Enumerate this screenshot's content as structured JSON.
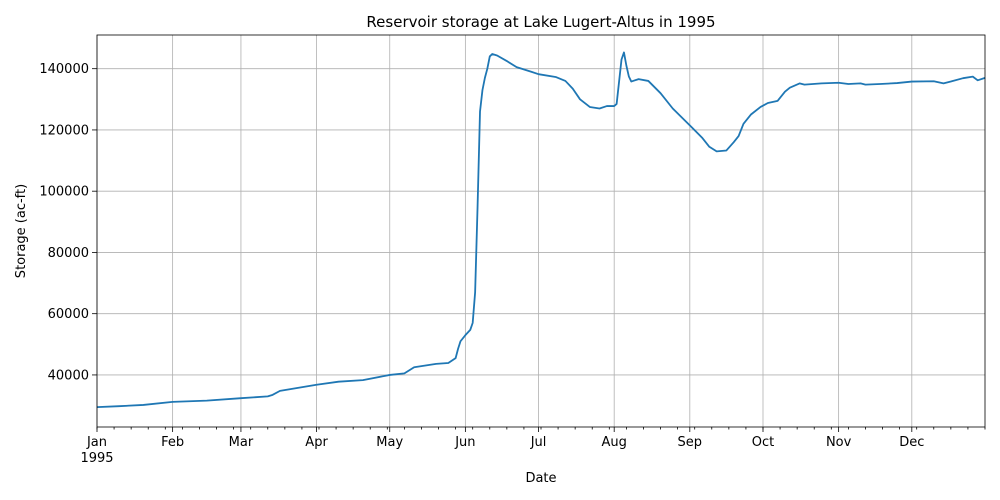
{
  "chart_data": {
    "type": "line",
    "title": "Reservoir storage at Lake Lugert-Altus in 1995",
    "xlabel": "Date",
    "ylabel": "Storage (ac-ft)",
    "xlim": [
      "1995-01-01",
      "1995-12-31"
    ],
    "ylim": [
      23000,
      151000
    ],
    "grid": true,
    "line_color": "#1f77b4",
    "x_ticks": [
      {
        "date": "1995-01-01",
        "label": "Jan",
        "sublabel": "1995"
      },
      {
        "date": "1995-02-01",
        "label": "Feb"
      },
      {
        "date": "1995-03-01",
        "label": "Mar"
      },
      {
        "date": "1995-04-01",
        "label": "Apr"
      },
      {
        "date": "1995-05-01",
        "label": "May"
      },
      {
        "date": "1995-06-01",
        "label": "Jun"
      },
      {
        "date": "1995-07-01",
        "label": "Jul"
      },
      {
        "date": "1995-08-01",
        "label": "Aug"
      },
      {
        "date": "1995-09-01",
        "label": "Sep"
      },
      {
        "date": "1995-10-01",
        "label": "Oct"
      },
      {
        "date": "1995-11-01",
        "label": "Nov"
      },
      {
        "date": "1995-12-01",
        "label": "Dec"
      }
    ],
    "y_ticks": [
      40000,
      60000,
      80000,
      100000,
      120000,
      140000
    ],
    "series": [
      {
        "points": [
          [
            "1995-01-01",
            29500
          ],
          [
            "1995-01-10",
            29800
          ],
          [
            "1995-01-20",
            30200
          ],
          [
            "1995-02-01",
            31200
          ],
          [
            "1995-02-15",
            31600
          ],
          [
            "1995-03-01",
            32400
          ],
          [
            "1995-03-12",
            33000
          ],
          [
            "1995-03-14",
            33500
          ],
          [
            "1995-03-17",
            34800
          ],
          [
            "1995-04-01",
            36800
          ],
          [
            "1995-04-10",
            37800
          ],
          [
            "1995-04-20",
            38300
          ],
          [
            "1995-05-01",
            40000
          ],
          [
            "1995-05-07",
            40500
          ],
          [
            "1995-05-11",
            42500
          ],
          [
            "1995-05-20",
            43600
          ],
          [
            "1995-05-25",
            43900
          ],
          [
            "1995-05-28",
            45500
          ],
          [
            "1995-05-29",
            48500
          ],
          [
            "1995-05-30",
            51000
          ],
          [
            "1995-06-01",
            53000
          ],
          [
            "1995-06-03",
            54700
          ],
          [
            "1995-06-04",
            57000
          ],
          [
            "1995-06-05",
            67000
          ],
          [
            "1995-06-06",
            95000
          ],
          [
            "1995-06-07",
            126000
          ],
          [
            "1995-06-08",
            133000
          ],
          [
            "1995-06-09",
            137000
          ],
          [
            "1995-06-10",
            140000
          ],
          [
            "1995-06-11",
            144000
          ],
          [
            "1995-06-12",
            144800
          ],
          [
            "1995-06-14",
            144300
          ],
          [
            "1995-06-18",
            142500
          ],
          [
            "1995-06-22",
            140500
          ],
          [
            "1995-06-28",
            139000
          ],
          [
            "1995-07-01",
            138200
          ],
          [
            "1995-07-08",
            137300
          ],
          [
            "1995-07-12",
            136000
          ],
          [
            "1995-07-15",
            133500
          ],
          [
            "1995-07-18",
            130000
          ],
          [
            "1995-07-22",
            127500
          ],
          [
            "1995-07-26",
            127000
          ],
          [
            "1995-07-29",
            127800
          ],
          [
            "1995-08-01",
            127800
          ],
          [
            "1995-08-02",
            128500
          ],
          [
            "1995-08-04",
            143000
          ],
          [
            "1995-08-05",
            145300
          ],
          [
            "1995-08-06",
            141000
          ],
          [
            "1995-08-07",
            137500
          ],
          [
            "1995-08-08",
            135800
          ],
          [
            "1995-08-11",
            136600
          ],
          [
            "1995-08-15",
            136000
          ],
          [
            "1995-08-20",
            132000
          ],
          [
            "1995-08-25",
            127000
          ],
          [
            "1995-09-01",
            121500
          ],
          [
            "1995-09-06",
            117500
          ],
          [
            "1995-09-09",
            114500
          ],
          [
            "1995-09-12",
            113000
          ],
          [
            "1995-09-16",
            113300
          ],
          [
            "1995-09-19",
            116000
          ],
          [
            "1995-09-21",
            118000
          ],
          [
            "1995-09-23",
            122000
          ],
          [
            "1995-09-26",
            125000
          ],
          [
            "1995-09-30",
            127500
          ],
          [
            "1995-10-03",
            128800
          ],
          [
            "1995-10-07",
            129500
          ],
          [
            "1995-10-10",
            132500
          ],
          [
            "1995-10-12",
            133800
          ],
          [
            "1995-10-16",
            135200
          ],
          [
            "1995-10-18",
            134800
          ],
          [
            "1995-10-25",
            135200
          ],
          [
            "1995-11-01",
            135400
          ],
          [
            "1995-11-05",
            135000
          ],
          [
            "1995-11-10",
            135200
          ],
          [
            "1995-11-12",
            134800
          ],
          [
            "1995-11-18",
            135000
          ],
          [
            "1995-11-25",
            135300
          ],
          [
            "1995-12-01",
            135800
          ],
          [
            "1995-12-10",
            135900
          ],
          [
            "1995-12-14",
            135200
          ],
          [
            "1995-12-17",
            135800
          ],
          [
            "1995-12-22",
            136900
          ],
          [
            "1995-12-26",
            137400
          ],
          [
            "1995-12-28",
            136200
          ],
          [
            "1995-12-31",
            137000
          ]
        ]
      }
    ]
  }
}
